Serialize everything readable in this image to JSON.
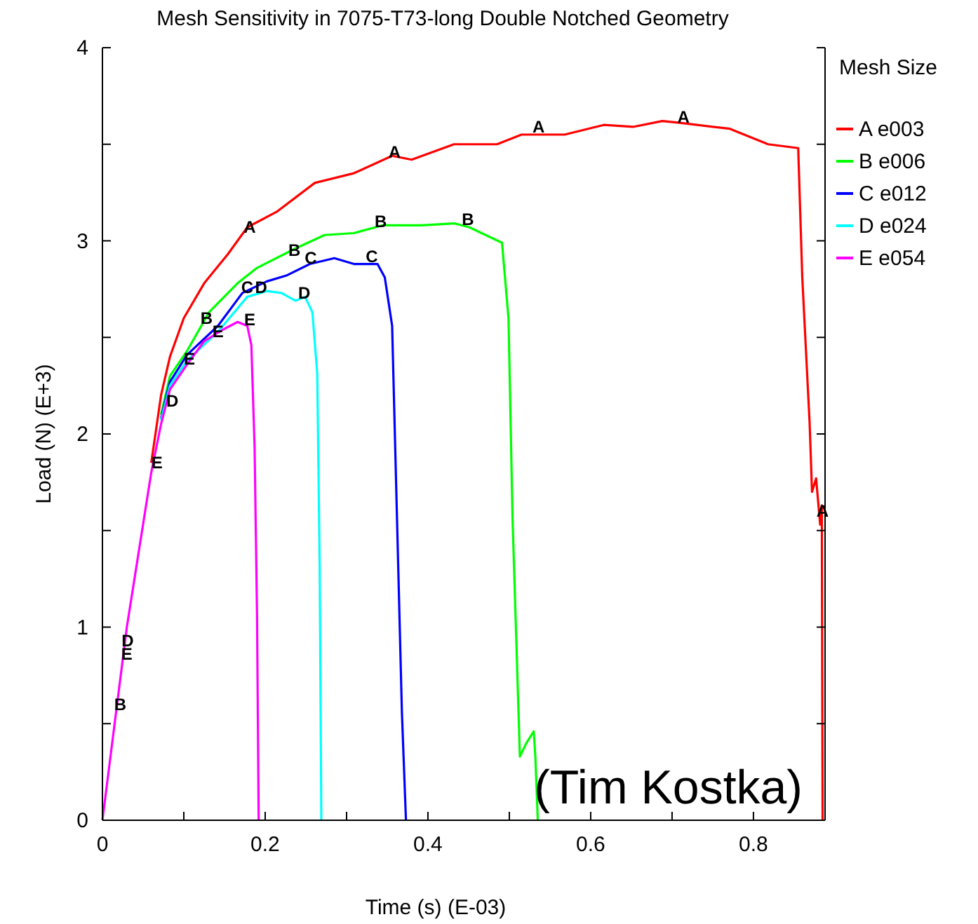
{
  "chart_data": {
    "type": "line",
    "title": "Mesh Sensitivity in 7075-T73-long Double Notched Geometry",
    "xlabel": "Time (s) (E-03)",
    "ylabel": "Load (N) (E+3)",
    "legend_title": "Mesh Size",
    "legend": "top right",
    "grid": false,
    "marker": "none",
    "line_style": "solid",
    "xlim": [
      0,
      0.888
    ],
    "xticks": [
      0,
      {
        "value": 0.1,
        "label": null
      },
      0.2,
      {
        "value": 0.3,
        "label": null
      },
      0.4,
      {
        "value": 0.5,
        "label": null
      },
      0.6,
      {
        "value": 0.7,
        "label": null
      },
      0.8
    ],
    "ylim": [
      0,
      4
    ],
    "yticks": [
      0,
      {
        "value": 0.5,
        "label": null
      },
      1,
      {
        "value": 1.5,
        "label": null
      },
      2,
      {
        "value": 2.5,
        "label": null
      },
      3,
      {
        "value": 3.5,
        "label": null
      },
      4
    ],
    "series": [
      {
        "name": "A e003",
        "color": "#ff0000",
        "x": [
          0.06,
          0.072,
          0.083,
          0.1,
          0.125,
          0.154,
          0.178,
          0.214,
          0.261,
          0.309,
          0.356,
          0.38,
          0.432,
          0.485,
          0.515,
          0.568,
          0.616,
          0.652,
          0.688,
          0.711,
          0.771,
          0.818,
          0.855,
          0.86,
          0.869,
          0.872,
          0.877,
          0.882,
          0.884,
          0.885
        ],
        "values": [
          1.85,
          2.2,
          2.4,
          2.6,
          2.78,
          2.93,
          3.07,
          3.15,
          3.3,
          3.35,
          3.44,
          3.42,
          3.5,
          3.5,
          3.55,
          3.55,
          3.6,
          3.59,
          3.62,
          3.61,
          3.58,
          3.5,
          3.48,
          2.81,
          2.06,
          1.7,
          1.77,
          1.53,
          1.63,
          0
        ]
      },
      {
        "name": "B e006",
        "color": "#00ff00",
        "x": [
          0.072,
          0.083,
          0.104,
          0.131,
          0.166,
          0.19,
          0.237,
          0.273,
          0.309,
          0.344,
          0.392,
          0.433,
          0.451,
          0.491,
          0.499,
          0.504,
          0.513,
          0.521,
          0.53,
          0.532,
          0.535
        ],
        "values": [
          2.1,
          2.3,
          2.43,
          2.63,
          2.78,
          2.86,
          2.96,
          3.03,
          3.04,
          3.08,
          3.08,
          3.09,
          3.07,
          2.99,
          2.6,
          1.56,
          0.33,
          0.4,
          0.46,
          0.33,
          0
        ]
      },
      {
        "name": "C e012",
        "color": "#0000ff",
        "x": [
          0.072,
          0.083,
          0.104,
          0.142,
          0.172,
          0.202,
          0.226,
          0.255,
          0.285,
          0.309,
          0.338,
          0.347,
          0.356,
          0.362,
          0.368,
          0.373
        ],
        "values": [
          2.08,
          2.27,
          2.41,
          2.56,
          2.73,
          2.79,
          2.82,
          2.88,
          2.91,
          2.88,
          2.88,
          2.81,
          2.56,
          1.56,
          0.56,
          0
        ]
      },
      {
        "name": "D e024",
        "color": "#00ffff",
        "x": [
          0.072,
          0.083,
          0.104,
          0.142,
          0.178,
          0.202,
          0.22,
          0.237,
          0.249,
          0.258,
          0.264,
          0.267,
          0.269
        ],
        "values": [
          2.07,
          2.25,
          2.38,
          2.53,
          2.71,
          2.74,
          2.73,
          2.69,
          2.71,
          2.63,
          2.31,
          1.31,
          0
        ]
      },
      {
        "name": "E e054",
        "color": "#ff00ff",
        "x": [
          0,
          0.006,
          0.015,
          0.03,
          0.045,
          0.06,
          0.072,
          0.083,
          0.104,
          0.125,
          0.148,
          0.166,
          0.178,
          0.183,
          0.187,
          0.19,
          0.192
        ],
        "values": [
          0,
          0.2,
          0.5,
          1.0,
          1.4,
          1.8,
          2.05,
          2.23,
          2.36,
          2.48,
          2.54,
          2.58,
          2.56,
          2.46,
          1.93,
          1.06,
          0
        ]
      }
    ],
    "annotations": [
      {
        "text": "A",
        "x": 0.181,
        "y": 3.07
      },
      {
        "text": "A",
        "x": 0.359,
        "y": 3.46
      },
      {
        "text": "A",
        "x": 0.536,
        "y": 3.59
      },
      {
        "text": "A",
        "x": 0.714,
        "y": 3.64
      },
      {
        "text": "A",
        "x": 0.885,
        "y": 1.6
      },
      {
        "text": "B",
        "x": 0.022,
        "y": 0.6
      },
      {
        "text": "B",
        "x": 0.128,
        "y": 2.6
      },
      {
        "text": "B",
        "x": 0.236,
        "y": 2.95
      },
      {
        "text": "B",
        "x": 0.342,
        "y": 3.1
      },
      {
        "text": "B",
        "x": 0.449,
        "y": 3.11
      },
      {
        "text": "C",
        "x": 0.178,
        "y": 2.76
      },
      {
        "text": "C",
        "x": 0.256,
        "y": 2.91
      },
      {
        "text": "C",
        "x": 0.331,
        "y": 2.92
      },
      {
        "text": "D",
        "x": 0.031,
        "y": 0.93
      },
      {
        "text": "D",
        "x": 0.086,
        "y": 2.17
      },
      {
        "text": "D",
        "x": 0.195,
        "y": 2.76
      },
      {
        "text": "D",
        "x": 0.248,
        "y": 2.73
      },
      {
        "text": "E",
        "x": 0.03,
        "y": 0.86
      },
      {
        "text": "E",
        "x": 0.067,
        "y": 1.85
      },
      {
        "text": "E",
        "x": 0.107,
        "y": 2.39
      },
      {
        "text": "E",
        "x": 0.142,
        "y": 2.53
      },
      {
        "text": "E",
        "x": 0.181,
        "y": 2.59
      },
      "(Tim Kostka)"
    ]
  }
}
